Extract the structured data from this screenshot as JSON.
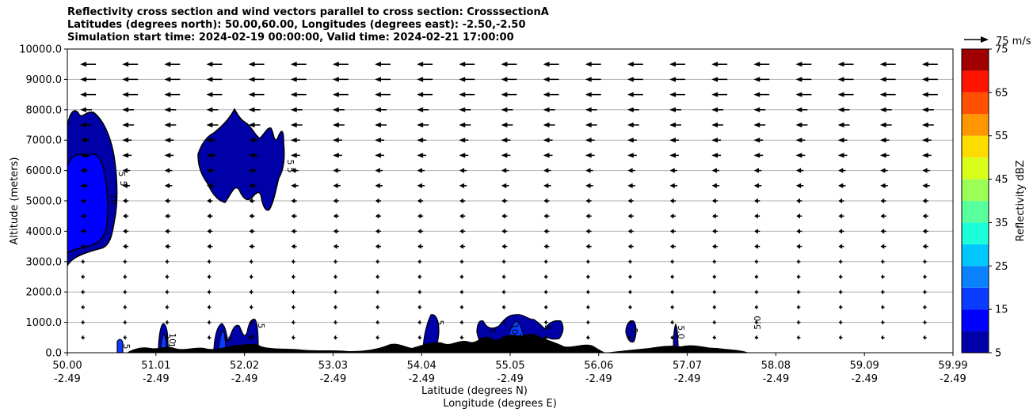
{
  "chart_data": {
    "type": "heatmap",
    "title_lines": [
      "Reflectivity cross section and wind vectors parallel to cross section: CrosssectionA",
      "Latitudes (degrees north): 50.00,60.00, Longitudes (degrees east): -2.50,-2.50",
      "Simulation start time: 2024-02-19 00:00:00, Valid time: 2024-02-21 17:00:00"
    ],
    "ylabel": "Altitude (meters)",
    "xlabel_lat": "Latitude (degrees N)",
    "xlabel_lon": "Longitude (degrees E)",
    "xlim": [
      50.0,
      59.99
    ],
    "ylim": [
      0,
      10000
    ],
    "y_ticks": [
      "0.0",
      "1000.0",
      "2000.0",
      "3000.0",
      "4000.0",
      "5000.0",
      "6000.0",
      "7000.0",
      "8000.0",
      "9000.0",
      "10000.0"
    ],
    "x_ticks": [
      {
        "lat": "50.00",
        "lon": "-2.49"
      },
      {
        "lat": "51.01",
        "lon": "-2.49"
      },
      {
        "lat": "52.02",
        "lon": "-2.49"
      },
      {
        "lat": "53.03",
        "lon": "-2.49"
      },
      {
        "lat": "54.04",
        "lon": "-2.49"
      },
      {
        "lat": "55.05",
        "lon": "-2.49"
      },
      {
        "lat": "56.06",
        "lon": "-2.49"
      },
      {
        "lat": "57.07",
        "lon": "-2.49"
      },
      {
        "lat": "58.08",
        "lon": "-2.49"
      },
      {
        "lat": "59.09",
        "lon": "-2.49"
      },
      {
        "lat": "59.99",
        "lon": "-2.49"
      }
    ],
    "grid": "horizontal",
    "colorbar": {
      "label": "Reflectivity dBZ",
      "levels": [
        5,
        10,
        15,
        20,
        25,
        30,
        35,
        40,
        45,
        50,
        55,
        60,
        65,
        70,
        75
      ],
      "tick_labels": [
        "5",
        "15",
        "25",
        "35",
        "45",
        "55",
        "65",
        "75"
      ],
      "colors": [
        "#0000a8",
        "#0000ff",
        "#0a3cff",
        "#0a82ff",
        "#00c8ff",
        "#1affd8",
        "#58ff9c",
        "#9cff58",
        "#d8ff1a",
        "#ffdc00",
        "#ff9600",
        "#ff5000",
        "#ff1400",
        "#a00000"
      ]
    },
    "wind_key": "75 m/s",
    "contour_labels": [
      "5",
      "5",
      "10",
      "5",
      "5",
      "5",
      "10",
      "10",
      "5",
      "5",
      "5",
      "5.0",
      "5",
      "10",
      "5",
      "10",
      "5",
      "5",
      "5.0"
    ],
    "reflectivity_cells": [
      {
        "lat_range": [
          50.0,
          50.55
        ],
        "alt_range": [
          2900,
          8000
        ],
        "max_dbz": 10
      },
      {
        "lat_range": [
          51.5,
          52.5
        ],
        "alt_range": [
          4700,
          8100
        ],
        "max_dbz": 5
      },
      {
        "lat_range": [
          50.55,
          50.62
        ],
        "alt_range": [
          0,
          400
        ],
        "max_dbz": 10
      },
      {
        "lat_range": [
          51.0,
          51.1
        ],
        "alt_range": [
          0,
          950
        ],
        "max_dbz": 10
      },
      {
        "lat_range": [
          51.65,
          52.1
        ],
        "alt_range": [
          0,
          1100
        ],
        "max_dbz": 10
      },
      {
        "lat_range": [
          53.97,
          54.15
        ],
        "alt_range": [
          0,
          1300
        ],
        "max_dbz": 5
      },
      {
        "lat_range": [
          54.6,
          55.6
        ],
        "alt_range": [
          0,
          1350
        ],
        "max_dbz": 10
      },
      {
        "lat_range": [
          56.25,
          56.35
        ],
        "alt_range": [
          300,
          1100
        ],
        "max_dbz": 5
      },
      {
        "lat_range": [
          56.85,
          56.9
        ],
        "alt_range": [
          0,
          1000
        ],
        "max_dbz": 5
      }
    ],
    "wind_vectors": "westward (toward lower latitude), strongest above 8000 m, weakening with height below"
  }
}
